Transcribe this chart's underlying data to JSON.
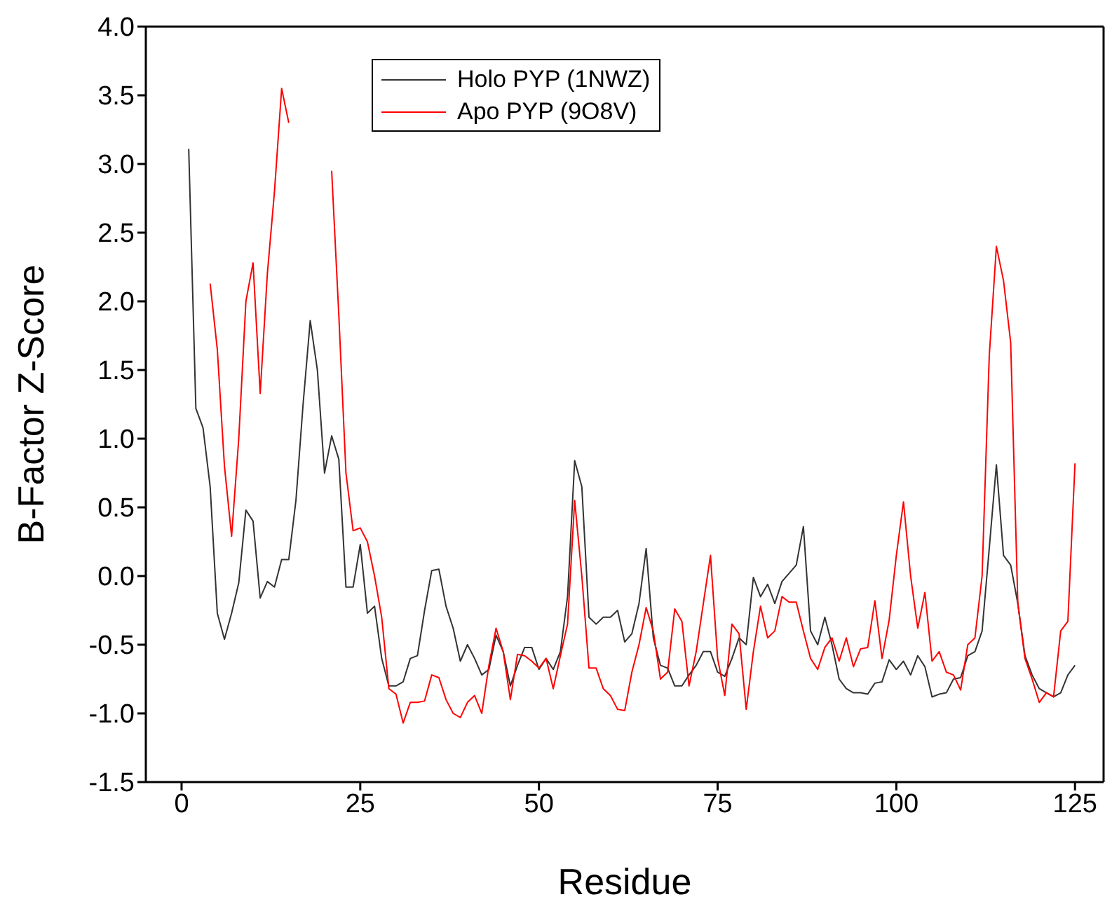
{
  "chart_data": {
    "type": "line",
    "xlabel": "Residue",
    "ylabel": "B-Factor Z-Score",
    "x": [
      1,
      2,
      3,
      4,
      5,
      6,
      7,
      8,
      9,
      10,
      11,
      12,
      13,
      14,
      15,
      16,
      17,
      18,
      19,
      20,
      21,
      22,
      23,
      24,
      25,
      26,
      27,
      28,
      29,
      30,
      31,
      32,
      33,
      34,
      35,
      36,
      37,
      38,
      39,
      40,
      41,
      42,
      43,
      44,
      45,
      46,
      47,
      48,
      49,
      50,
      51,
      52,
      53,
      54,
      55,
      56,
      57,
      58,
      59,
      60,
      61,
      62,
      63,
      64,
      65,
      66,
      67,
      68,
      69,
      70,
      71,
      72,
      73,
      74,
      75,
      76,
      77,
      78,
      79,
      80,
      81,
      82,
      83,
      84,
      85,
      86,
      87,
      88,
      89,
      90,
      91,
      92,
      93,
      94,
      95,
      96,
      97,
      98,
      99,
      100,
      101,
      102,
      103,
      104,
      105,
      106,
      107,
      108,
      109,
      110,
      111,
      112,
      113,
      114,
      115,
      116,
      117,
      118,
      119,
      120,
      121,
      122,
      123,
      124,
      125
    ],
    "series": [
      {
        "name": "Holo PYP (1NWZ)",
        "color": "#333333",
        "values": [
          3.11,
          1.22,
          1.08,
          0.65,
          -0.27,
          -0.46,
          -0.27,
          -0.05,
          0.48,
          0.4,
          -0.16,
          -0.04,
          -0.08,
          0.12,
          0.12,
          0.55,
          1.25,
          1.86,
          1.5,
          0.75,
          1.02,
          0.85,
          -0.08,
          -0.08,
          0.23,
          -0.27,
          -0.22,
          -0.6,
          -0.8,
          -0.8,
          -0.77,
          -0.6,
          -0.58,
          -0.25,
          0.04,
          0.05,
          -0.22,
          -0.38,
          -0.62,
          -0.5,
          -0.6,
          -0.72,
          -0.68,
          -0.43,
          -0.55,
          -0.8,
          -0.65,
          -0.52,
          -0.52,
          -0.68,
          -0.6,
          -0.68,
          -0.55,
          -0.15,
          0.84,
          0.65,
          -0.3,
          -0.35,
          -0.3,
          -0.3,
          -0.25,
          -0.48,
          -0.42,
          -0.2,
          0.2,
          -0.45,
          -0.65,
          -0.67,
          -0.8,
          -0.8,
          -0.72,
          -0.65,
          -0.55,
          -0.55,
          -0.7,
          -0.73,
          -0.6,
          -0.45,
          -0.5,
          -0.01,
          -0.15,
          -0.06,
          -0.2,
          -0.04,
          0.02,
          0.08,
          0.36,
          -0.4,
          -0.5,
          -0.3,
          -0.5,
          -0.75,
          -0.82,
          -0.85,
          -0.85,
          -0.86,
          -0.78,
          -0.77,
          -0.61,
          -0.68,
          -0.62,
          -0.72,
          -0.58,
          -0.66,
          -0.88,
          -0.86,
          -0.85,
          -0.75,
          -0.74,
          -0.58,
          -0.55,
          -0.4,
          0.2,
          0.81,
          0.15,
          0.08,
          -0.2,
          -0.58,
          -0.72,
          -0.82,
          -0.85,
          -0.88,
          -0.85,
          -0.72,
          -0.65
        ]
      },
      {
        "name": "Apo PYP (9O8V)",
        "color": "#ff0000",
        "values": [
          null,
          null,
          null,
          2.13,
          1.65,
          0.8,
          0.29,
          1.0,
          2.0,
          2.28,
          1.33,
          2.2,
          2.8,
          3.55,
          3.3,
          null,
          null,
          null,
          null,
          null,
          2.95,
          1.9,
          0.75,
          0.33,
          0.35,
          0.25,
          0.0,
          -0.3,
          -0.82,
          -0.86,
          -1.07,
          -0.92,
          -0.92,
          -0.91,
          -0.72,
          -0.74,
          -0.9,
          -1.0,
          -1.03,
          -0.92,
          -0.87,
          -1.0,
          -0.65,
          -0.38,
          -0.55,
          -0.9,
          -0.57,
          -0.58,
          -0.62,
          -0.67,
          -0.6,
          -0.82,
          -0.58,
          -0.35,
          0.55,
          0.0,
          -0.67,
          -0.67,
          -0.82,
          -0.87,
          -0.97,
          -0.98,
          -0.7,
          -0.5,
          -0.23,
          -0.4,
          -0.75,
          -0.7,
          -0.24,
          -0.33,
          -0.8,
          -0.55,
          -0.2,
          0.15,
          -0.6,
          -0.87,
          -0.35,
          -0.42,
          -0.97,
          -0.55,
          -0.22,
          -0.45,
          -0.4,
          -0.15,
          -0.19,
          -0.19,
          -0.4,
          -0.6,
          -0.68,
          -0.52,
          -0.45,
          -0.62,
          -0.45,
          -0.66,
          -0.53,
          -0.52,
          -0.18,
          -0.6,
          -0.32,
          0.15,
          0.54,
          0.0,
          -0.38,
          -0.12,
          -0.62,
          -0.55,
          -0.7,
          -0.72,
          -0.83,
          -0.5,
          -0.45,
          0.0,
          1.6,
          2.4,
          2.15,
          1.7,
          -0.2,
          -0.6,
          -0.75,
          -0.92,
          -0.85,
          -0.88,
          -0.4,
          -0.33,
          0.82
        ]
      }
    ],
    "xlim": [
      -5,
      129
    ],
    "xticks": [
      0,
      25,
      50,
      75,
      100,
      125
    ],
    "ylim": [
      -1.5,
      4.0
    ],
    "yticks": [
      {
        "value": -1.5,
        "label": "-1.5"
      },
      {
        "value": -1.0,
        "label": "-1.0"
      },
      {
        "value": -0.5,
        "label": "-0.5"
      },
      {
        "value": 0,
        "label": "0.0"
      },
      {
        "value": 0.5,
        "label": "0.5"
      },
      {
        "value": 1.0,
        "label": "1.0"
      },
      {
        "value": 1.5,
        "label": "1.5"
      },
      {
        "value": 2.0,
        "label": "2.0"
      },
      {
        "value": 2.5,
        "label": "2.5"
      },
      {
        "value": 3.0,
        "label": "3.0"
      },
      {
        "value": 3.5,
        "label": "3.5"
      },
      {
        "value": 4.0,
        "label": "4.0"
      }
    ],
    "grid": false,
    "legend": "top left",
    "marker": "none",
    "line_style": "solid"
  }
}
